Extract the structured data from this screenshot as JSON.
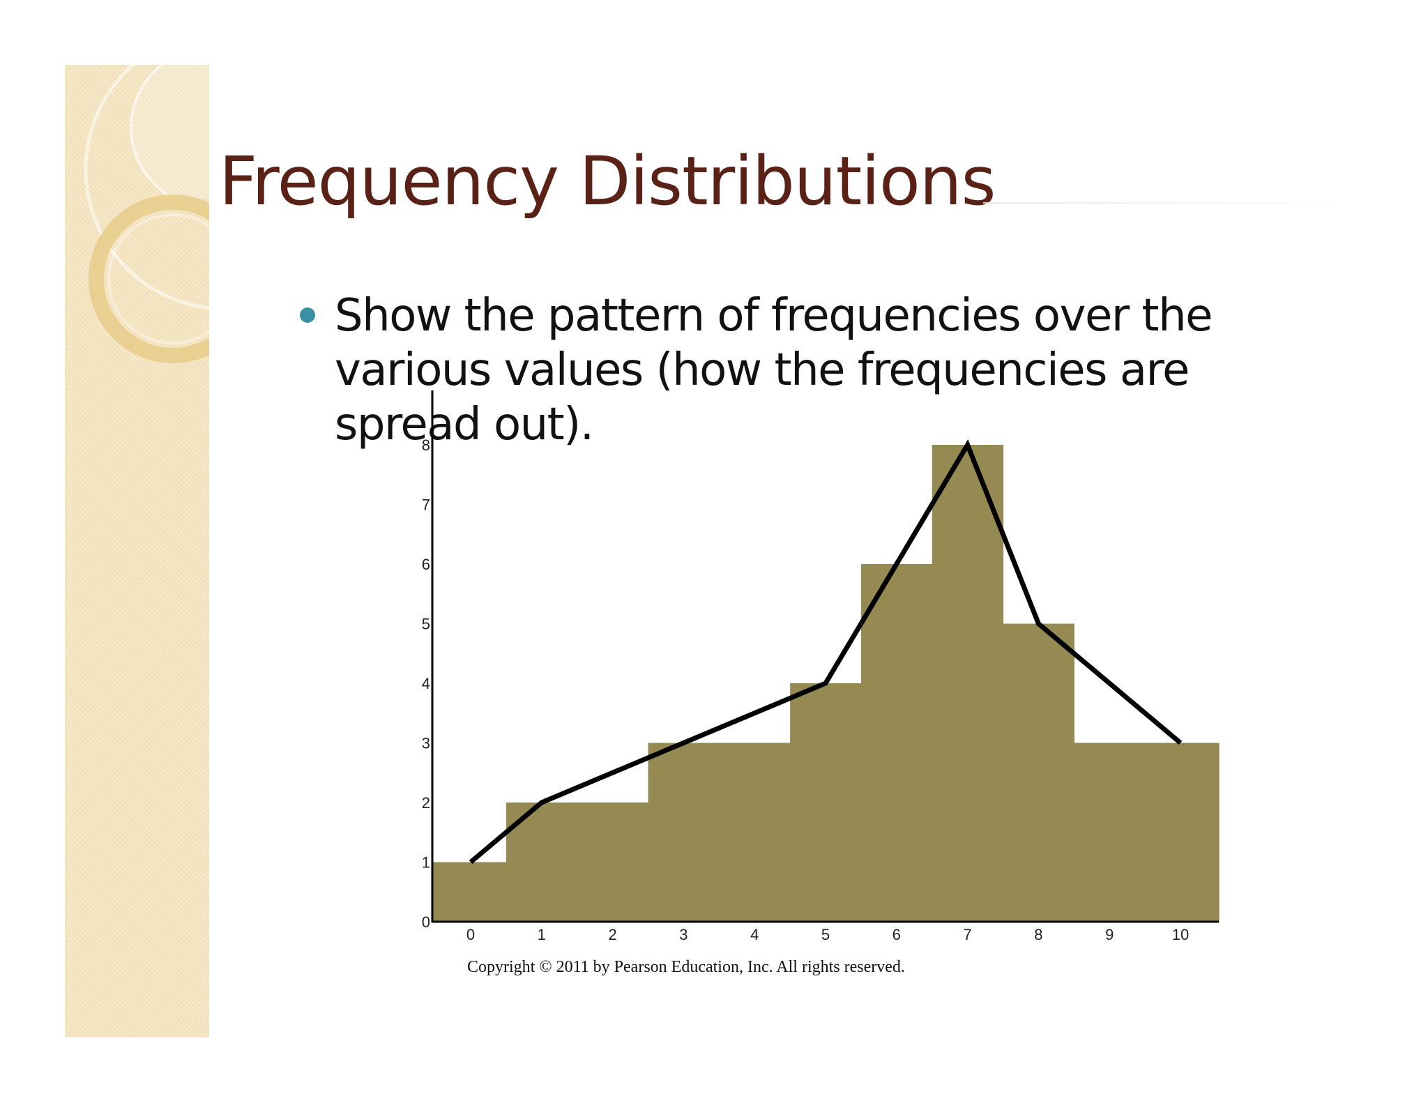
{
  "slide": {
    "title": "Frequency Distributions",
    "bullet": "Show the pattern of frequencies over the various values (how the frequencies are spread out).",
    "copyright": "Copyright © 2011 by Pearson Education, Inc. All rights reserved."
  },
  "colors": {
    "title": "#5a2216",
    "bullet_dot": "#3a8fa3",
    "bar_fill": "#948a52",
    "polygon_line": "#000000",
    "side_strip": "#f1e0b8"
  },
  "chart_data": {
    "type": "bar",
    "overlay": "line",
    "categories": [
      "0",
      "1",
      "2",
      "3",
      "4",
      "5",
      "6",
      "7",
      "8",
      "9",
      "10"
    ],
    "values": [
      1,
      2,
      2,
      3,
      3,
      4,
      6,
      8,
      5,
      3,
      3
    ],
    "line": {
      "x": [
        0,
        1,
        3,
        5,
        6,
        7,
        8,
        10
      ],
      "y": [
        1,
        2,
        3,
        4,
        6,
        8,
        5,
        3
      ]
    },
    "y_ticks": [
      "0",
      "1",
      "2",
      "3",
      "4",
      "5",
      "6",
      "7",
      "8"
    ],
    "ylim": [
      0,
      8
    ],
    "xlabel": "",
    "ylabel": "",
    "title": "",
    "grid": false
  }
}
